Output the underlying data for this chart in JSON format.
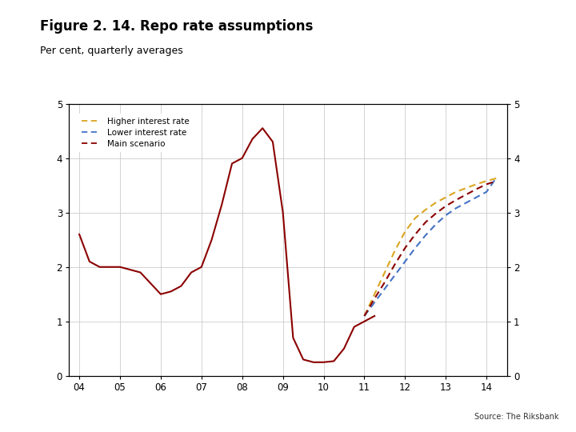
{
  "title": "Figure 2. 14. Repo rate assumptions",
  "subtitle": "Per cent, quarterly averages",
  "source": "Source: The Riksbank",
  "x_ticks": [
    "04",
    "05",
    "06",
    "07",
    "08",
    "09",
    "10",
    "11",
    "12",
    "13",
    "14"
  ],
  "ylim": [
    0,
    5
  ],
  "yticks": [
    0,
    1,
    2,
    3,
    4,
    5
  ],
  "main_color": "#8B0000",
  "higher_color": "#DAA520",
  "lower_color": "#4472C4",
  "main_x": [
    2004.0,
    2004.25,
    2004.5,
    2004.75,
    2005.0,
    2005.25,
    2005.5,
    2005.75,
    2006.0,
    2006.25,
    2006.5,
    2006.75,
    2007.0,
    2007.25,
    2007.5,
    2007.75,
    2008.0,
    2008.25,
    2008.5,
    2008.75,
    2009.0,
    2009.25,
    2009.5,
    2009.75,
    2010.0,
    2010.25,
    2010.5,
    2010.75,
    2011.0,
    2011.25
  ],
  "main_y": [
    2.6,
    2.1,
    2.0,
    2.0,
    2.0,
    1.95,
    1.9,
    1.7,
    1.5,
    1.55,
    1.65,
    1.9,
    2.0,
    2.5,
    3.15,
    3.9,
    4.0,
    4.35,
    4.55,
    4.3,
    3.0,
    0.7,
    0.3,
    0.25,
    0.25,
    0.27,
    0.5,
    0.9,
    1.0,
    1.1
  ],
  "higher_x": [
    2011.0,
    2011.25,
    2011.5,
    2011.75,
    2012.0,
    2012.25,
    2012.5,
    2012.75,
    2013.0,
    2013.25,
    2013.5,
    2013.75,
    2014.0,
    2014.25
  ],
  "higher_y": [
    1.1,
    1.5,
    1.9,
    2.3,
    2.65,
    2.9,
    3.05,
    3.18,
    3.28,
    3.38,
    3.45,
    3.52,
    3.58,
    3.63
  ],
  "lower_x": [
    2011.0,
    2011.25,
    2011.5,
    2011.75,
    2012.0,
    2012.25,
    2012.5,
    2012.75,
    2013.0,
    2013.25,
    2013.5,
    2013.75,
    2014.0,
    2014.25
  ],
  "lower_y": [
    1.1,
    1.35,
    1.6,
    1.85,
    2.1,
    2.35,
    2.58,
    2.78,
    2.95,
    3.08,
    3.18,
    3.28,
    3.38,
    3.65
  ],
  "main_dash_x": [
    2011.0,
    2011.25,
    2011.5,
    2011.75,
    2012.0,
    2012.25,
    2012.5,
    2012.75,
    2013.0,
    2013.25,
    2013.5,
    2013.75,
    2014.0,
    2014.25
  ],
  "main_dash_y": [
    1.1,
    1.42,
    1.72,
    2.05,
    2.35,
    2.6,
    2.82,
    2.98,
    3.12,
    3.23,
    3.33,
    3.43,
    3.52,
    3.58
  ],
  "background_color": "#FFFFFF",
  "grid_color": "#CCCCCC",
  "bottom_bar_color": "#003380",
  "logo_color": "#003380"
}
